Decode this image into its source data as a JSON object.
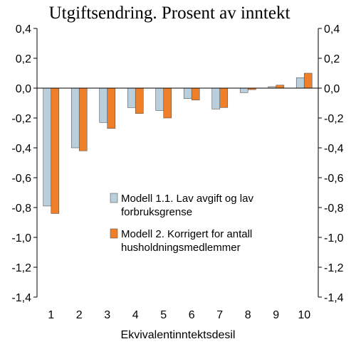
{
  "chart_data": {
    "type": "bar",
    "title": "Utgiftsendring. Prosent av inntekt",
    "xlabel": "Ekvivalentinntektsdesil",
    "ylabel": "",
    "categories": [
      "1",
      "2",
      "3",
      "4",
      "5",
      "6",
      "7",
      "8",
      "9",
      "10"
    ],
    "ylim": [
      -1.4,
      0.4
    ],
    "yticks": [
      0.4,
      0.2,
      0.0,
      -0.2,
      -0.4,
      -0.6,
      -0.8,
      -1.0,
      -1.2,
      -1.4
    ],
    "ytick_labels": [
      "0,4",
      "0,2",
      "0,0",
      "-0,2",
      "-0,4",
      "-0,6",
      "-0,8",
      "-1,0",
      "-1,2",
      "-1,4"
    ],
    "grid": false,
    "legend_position": "inside-bottom-right",
    "series": [
      {
        "name_lines": [
          "Modell 1.1. Lav avgift og lav",
          "forbruksgrense"
        ],
        "color": "#b9cfdc",
        "values": [
          -0.79,
          -0.4,
          -0.23,
          -0.13,
          -0.15,
          -0.07,
          -0.14,
          -0.03,
          0.01,
          0.07
        ]
      },
      {
        "name_lines": [
          "Modell 2. Korrigert for antall",
          "husholdningsmedlemmer"
        ],
        "color": "#f07f29",
        "values": [
          -0.84,
          -0.42,
          -0.27,
          -0.17,
          -0.2,
          -0.08,
          -0.13,
          -0.01,
          0.02,
          0.1
        ]
      }
    ]
  }
}
